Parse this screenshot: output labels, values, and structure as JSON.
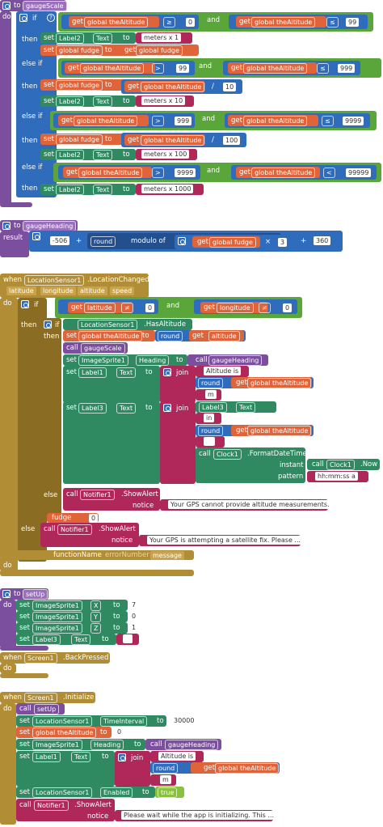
{
  "kw": {
    "to": "to",
    "do": "do",
    "if": "if",
    "then": "then",
    "else_if": "else if",
    "else": "else",
    "set": "set",
    "get": "get",
    "and": "and",
    "result": "result",
    "when": "when",
    "call": "call",
    "join": "join",
    "round": "round",
    "modulo_of": "modulo of",
    "instant": "instant",
    "pattern": "pattern",
    "notice": "notice"
  },
  "ops": {
    "ge": "≥",
    "le": "≤",
    "gt": ">",
    "lt": "<",
    "ne": "≠",
    "plus": "+",
    "times": "×",
    "div": "/"
  },
  "gaugeScale": {
    "name": "gaugeScale",
    "get_alt": "global theAltitude",
    "get_fudge": "global fudge",
    "label2": "Label2",
    "text": "Text",
    "n0": "0",
    "n99": "99",
    "n999": "999",
    "n9999": "9999",
    "n99999": "99999",
    "n10": "10",
    "n100": "100",
    "s1": "meters x 1",
    "s10": "meters x 10",
    "s100": "meters x 100",
    "s1000": "meters x 1000",
    "fudge_target": "global fudge"
  },
  "gaugeHeading": {
    "name": "gaugeHeading",
    "n506": "-506",
    "n3": "3",
    "n360": "360"
  },
  "location": {
    "event_obj": "LocationSensor1",
    "event": ".LocationChanged",
    "params": [
      "latitude",
      "longitude",
      "altitude",
      "speed"
    ],
    "latitude": "latitude",
    "longitude": "longitude",
    "altitude": "altitude",
    "has_altitude": ".HasAltitude",
    "set_alt": "global theAltitude",
    "gaugeScale": "gaugeScale",
    "imagesprite": "ImageSprite1",
    "heading": "Heading",
    "gaugeHeading": "gaugeHeading",
    "label1": "Label1",
    "label3": "Label3",
    "text": "Text",
    "altitude_is": "Altitude is",
    "m": "m",
    "label3_val": "Label3",
    "in": "in",
    "clock": "Clock1",
    "format": ".FormatDateTime",
    "now": ".Now",
    "pattern_val": "hh:mm:ss a",
    "notifier": "Notifier1",
    "showalert": ".ShowAlert",
    "no_alt": "Your GPS cannot provide altitude measurements.",
    "sat_fix": "Your GPS is attempting a satellite fix.  Please ...",
    "fudge_partial": "fudge",
    "fudge_val": "0",
    "error_partial_a": "functionName",
    "error_partial_b": "errorNumber",
    "error_partial_c": "message"
  },
  "setUp": {
    "name": "setUp",
    "sprite": "ImageSprite1",
    "x": "X",
    "y": "Y",
    "z": "Z",
    "v7": "7",
    "v0": "0",
    "v1": "1",
    "label3": "Label3",
    "text": "Text"
  },
  "back": {
    "obj": "Screen1",
    "event": ".BackPressed"
  },
  "init": {
    "obj": "Screen1",
    "event": ".Initialize",
    "setUp": "setUp",
    "loc": "LocationSensor1",
    "interval": "TimeInterval",
    "v30000": "30000",
    "alt": "global theAltitude",
    "v0": "0",
    "sprite": "ImageSprite1",
    "heading": "Heading",
    "gaugeHeading": "gaugeHeading",
    "label1": "Label1",
    "text": "Text",
    "altitude_is": "Altitude is",
    "get_alt": "global theAltitude",
    "m": "m",
    "enabled": "Enabled",
    "true": "true",
    "notifier": "Notifier1",
    "showalert": ".ShowAlert",
    "wait": "Please wait while the app is initializing. This ..."
  }
}
